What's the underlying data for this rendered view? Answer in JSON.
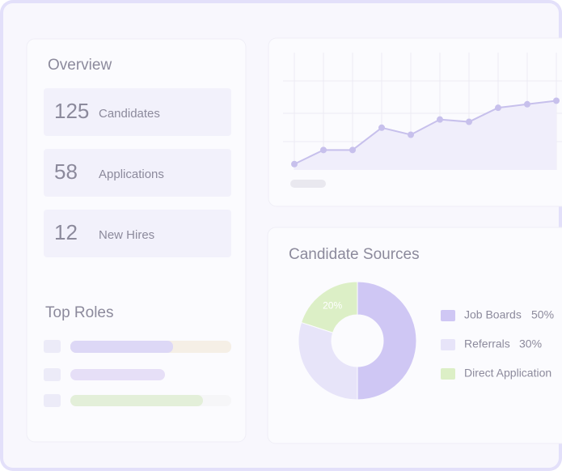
{
  "overview": {
    "title": "Overview",
    "stats": [
      {
        "value": 125,
        "label": "Candidates"
      },
      {
        "value": 58,
        "label": "Applications"
      },
      {
        "value": 12,
        "label": "New Hires"
      }
    ]
  },
  "top_roles": {
    "title": "Top Roles"
  },
  "trend": {
    "type": "line",
    "values": [
      5,
      17,
      17,
      36,
      30,
      43,
      41,
      53,
      56,
      59
    ],
    "ylim": [
      0,
      100
    ],
    "color": "#c7c0ec"
  },
  "candidate_sources": {
    "type": "pie",
    "title": "Candidate Sources",
    "categories": [
      "Job Boards",
      "Referrals",
      "Direct Application"
    ],
    "values": [
      50,
      30,
      20
    ],
    "value_labels": [
      "50%",
      "30%",
      "20%"
    ],
    "colors": [
      "#cfc7f4",
      "#e7e4f9",
      "#dcefc6"
    ]
  }
}
